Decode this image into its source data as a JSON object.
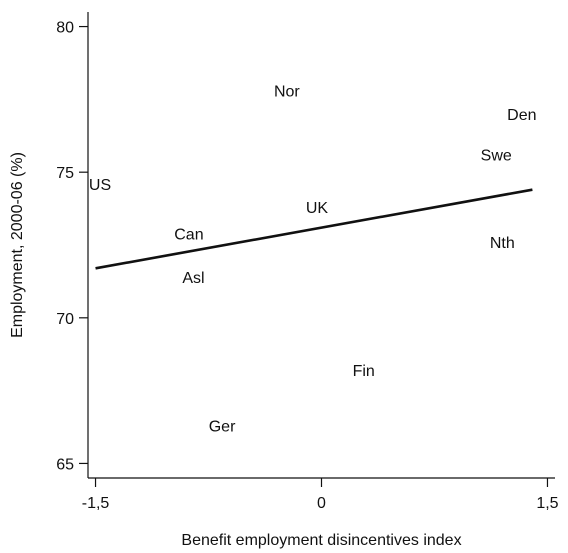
{
  "chart_data": {
    "type": "scatter",
    "title": "",
    "xlabel": "Benefit employment disincentives index",
    "ylabel": "Employment, 2000-06 (%)",
    "xlim": [
      -1.55,
      1.55
    ],
    "ylim": [
      64.5,
      80.5
    ],
    "x_ticks": [
      {
        "value": -1.5,
        "label": "-1,5"
      },
      {
        "value": 0,
        "label": "0"
      },
      {
        "value": 1.5,
        "label": "1,5"
      }
    ],
    "y_ticks": [
      {
        "value": 65,
        "label": "65"
      },
      {
        "value": 70,
        "label": "70"
      },
      {
        "value": 75,
        "label": "75"
      },
      {
        "value": 80,
        "label": "80"
      }
    ],
    "points": [
      {
        "label": "US",
        "x": -1.47,
        "y": 74.6
      },
      {
        "label": "Nor",
        "x": -0.23,
        "y": 77.8
      },
      {
        "label": "Den",
        "x": 1.33,
        "y": 77.0
      },
      {
        "label": "Swe",
        "x": 1.16,
        "y": 75.6
      },
      {
        "label": "UK",
        "x": -0.03,
        "y": 73.8
      },
      {
        "label": "Can",
        "x": -0.88,
        "y": 72.9
      },
      {
        "label": "Nth",
        "x": 1.2,
        "y": 72.6
      },
      {
        "label": "Asl",
        "x": -0.85,
        "y": 71.4
      },
      {
        "label": "Fin",
        "x": 0.28,
        "y": 68.2
      },
      {
        "label": "Ger",
        "x": -0.66,
        "y": 66.3
      }
    ],
    "fit_line": {
      "x": [
        -1.5,
        1.4
      ],
      "y": [
        71.7,
        74.4
      ]
    },
    "grid": false
  }
}
